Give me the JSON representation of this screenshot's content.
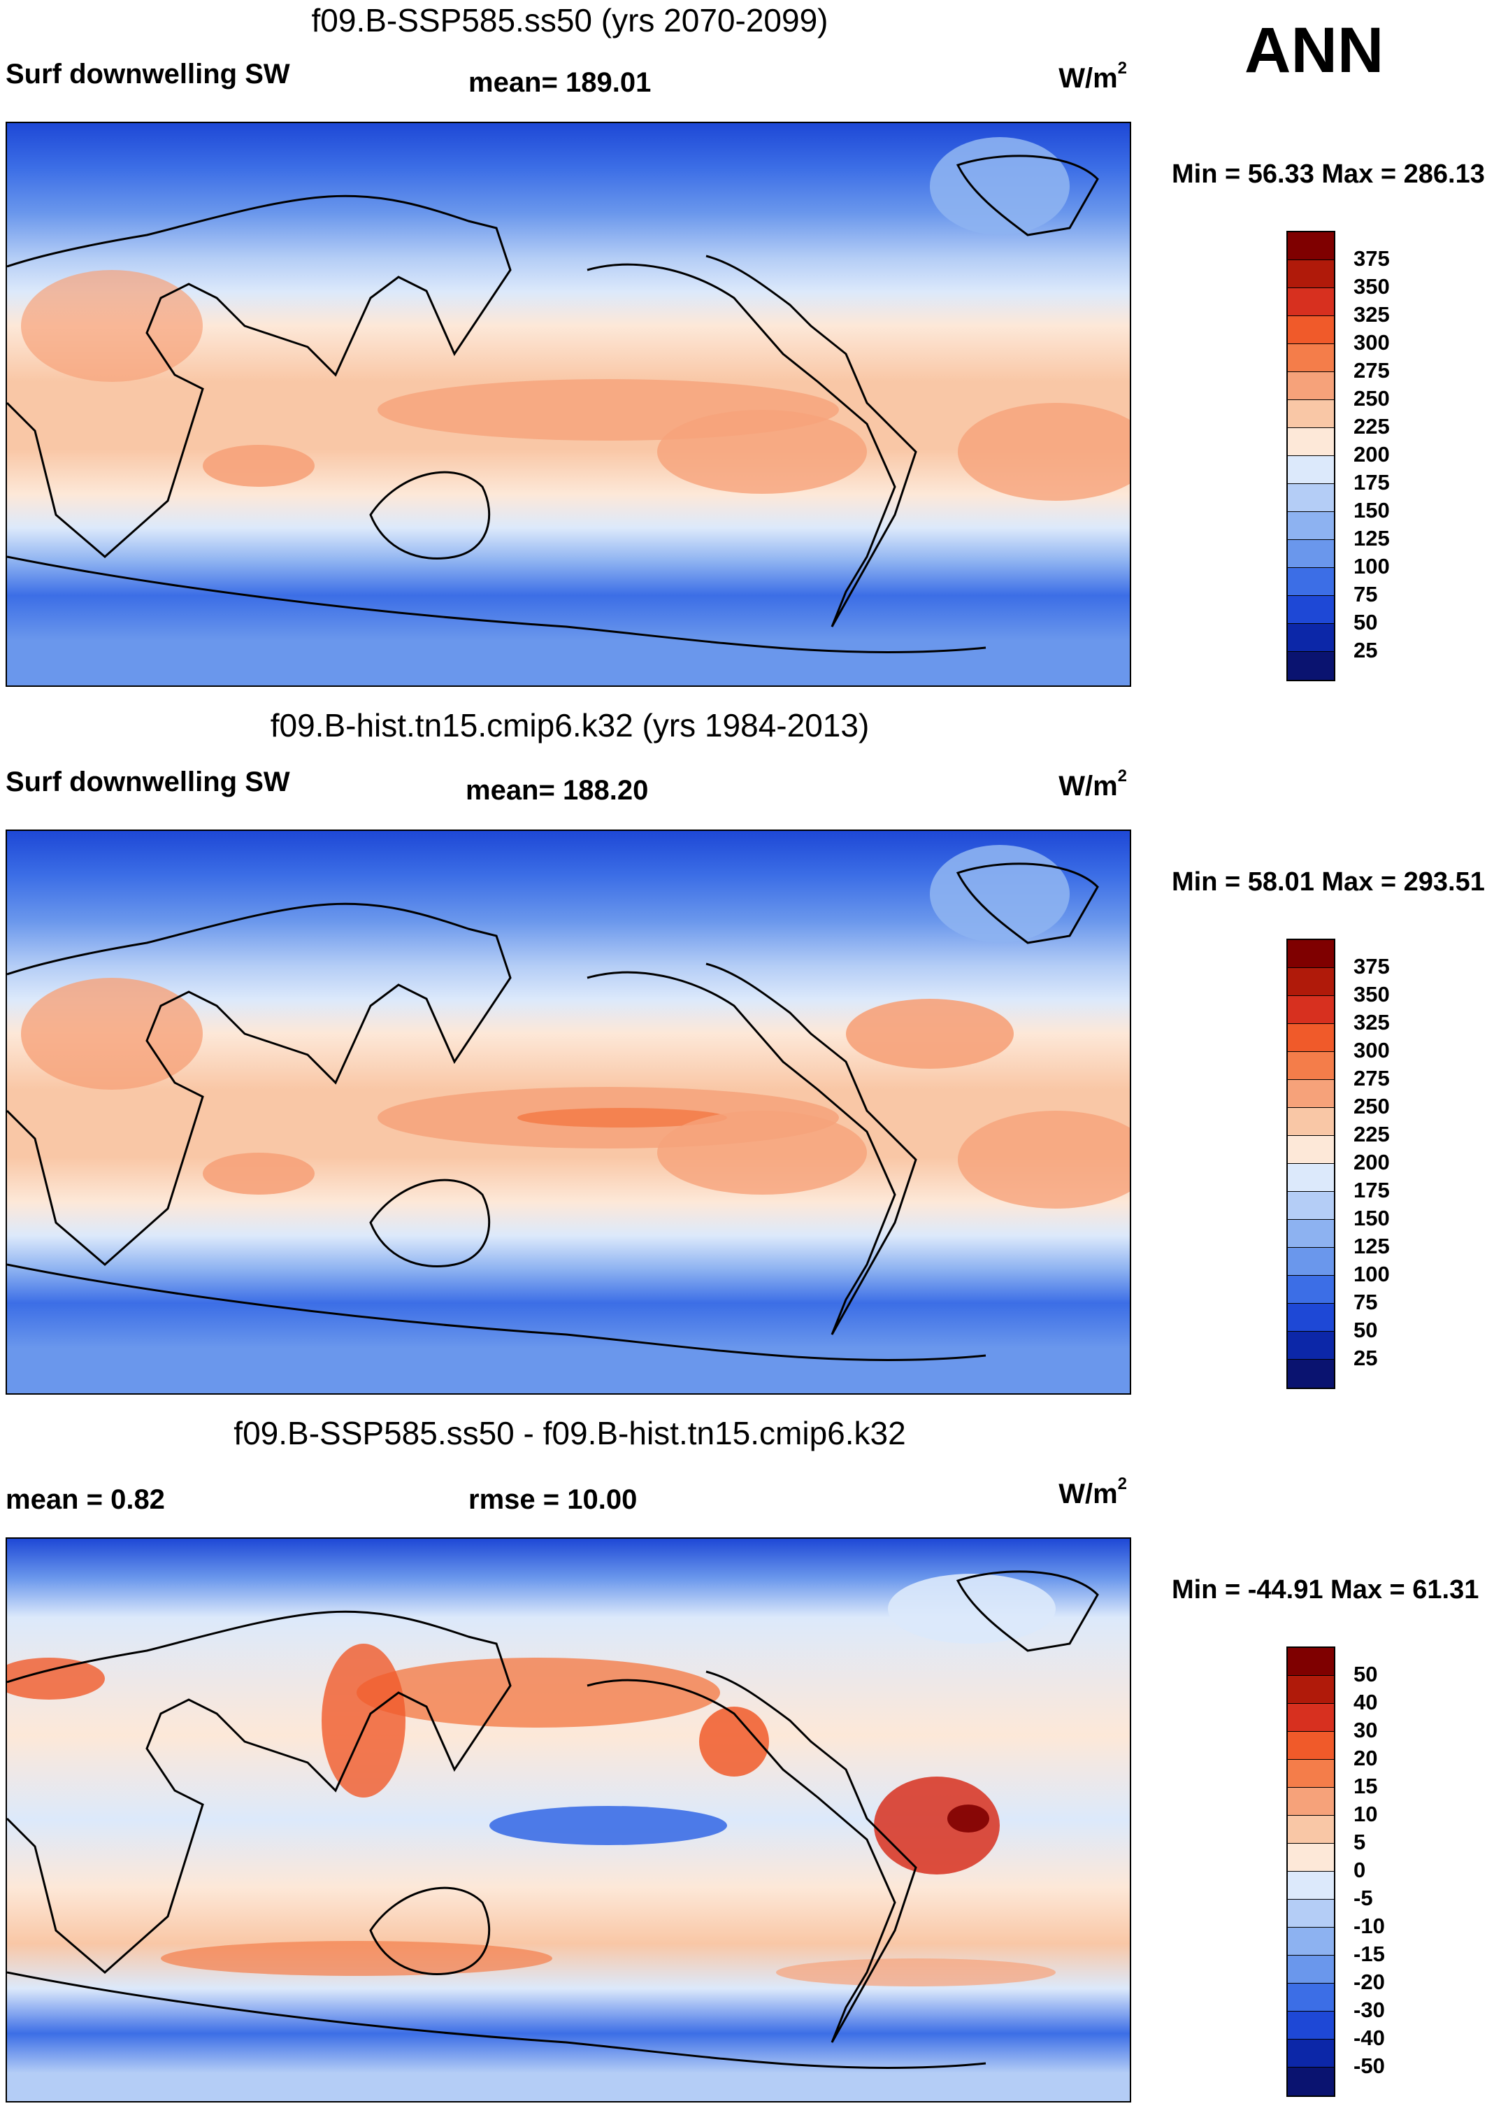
{
  "season": "ANN",
  "units_base": "W/m",
  "units_exp": "2",
  "panels": [
    {
      "title": "f09.B-SSP585.ss50 (yrs 2070-2099)",
      "left_label": "Surf downwelling SW",
      "stat_label": "mean= 189.01",
      "minmax": "Min =  56.33 Max = 286.13"
    },
    {
      "title": "f09.B-hist.tn15.cmip6.k32 (yrs 1984-2013)",
      "left_label": "Surf downwelling SW",
      "stat_label": "mean= 188.20",
      "minmax": "Min =  58.01 Max = 293.51"
    },
    {
      "title": "f09.B-SSP585.ss50 - f09.B-hist.tn15.cmip6.k32",
      "left_label": "mean =   0.82",
      "stat_label": "rmse =  10.00",
      "minmax": "Min = -44.91 Max =  61.31"
    }
  ],
  "colorbar_abs": {
    "levels": [
      "375",
      "350",
      "325",
      "300",
      "275",
      "250",
      "225",
      "200",
      "175",
      "150",
      "125",
      "100",
      "75",
      "50",
      "25"
    ],
    "colors": [
      "#7f0000",
      "#b01a0a",
      "#d7301f",
      "#f05a2a",
      "#f47d4a",
      "#f6a27a",
      "#f9c7a6",
      "#fde8d8",
      "#dce9fb",
      "#b4cdf6",
      "#8db2f1",
      "#6a97ec",
      "#3c6ee6",
      "#1e48d6",
      "#0c27a8",
      "#0a1370"
    ]
  },
  "colorbar_diff": {
    "levels": [
      "50",
      "40",
      "30",
      "20",
      "15",
      "10",
      "5",
      "0",
      "-5",
      "-10",
      "-15",
      "-20",
      "-30",
      "-40",
      "-50"
    ],
    "colors": [
      "#7f0000",
      "#b01a0a",
      "#d7301f",
      "#f05a2a",
      "#f47d4a",
      "#f6a27a",
      "#f9c7a6",
      "#fde8d8",
      "#dce9fb",
      "#b4cdf6",
      "#8db2f1",
      "#6a97ec",
      "#3c6ee6",
      "#1e48d6",
      "#0c27a8",
      "#0a1370"
    ]
  }
}
